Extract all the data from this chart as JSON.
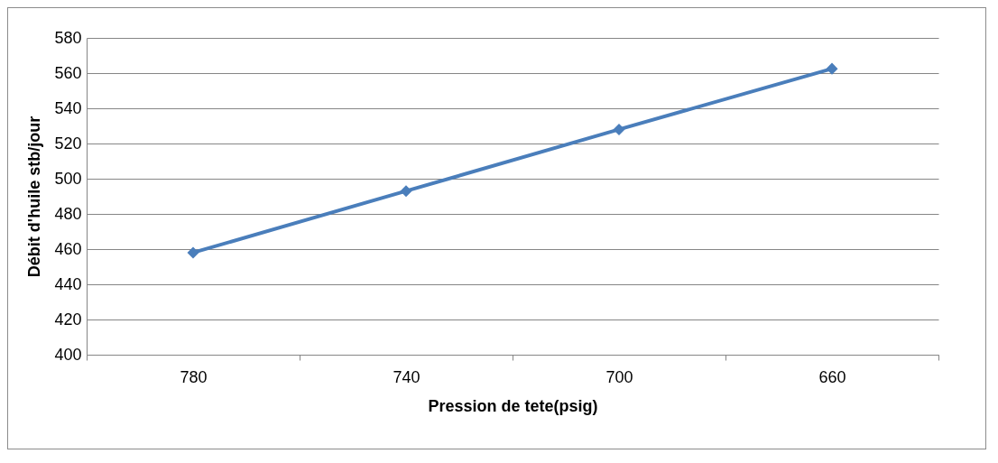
{
  "chart_data": {
    "type": "line",
    "xlabel": "Pression de tete(psig)",
    "ylabel": "Débit d'huile stb/jour",
    "categories": [
      "780",
      "740",
      "700",
      "660"
    ],
    "series": [
      {
        "color": "#4a7ebb",
        "values": [
          458,
          493,
          528,
          562.5
        ]
      }
    ],
    "ylim": [
      400,
      580
    ],
    "yticks": [
      400,
      420,
      440,
      460,
      480,
      500,
      520,
      540,
      560,
      580
    ],
    "grid": "y",
    "legend": false,
    "marker": "diamond",
    "line_style": "solid"
  }
}
